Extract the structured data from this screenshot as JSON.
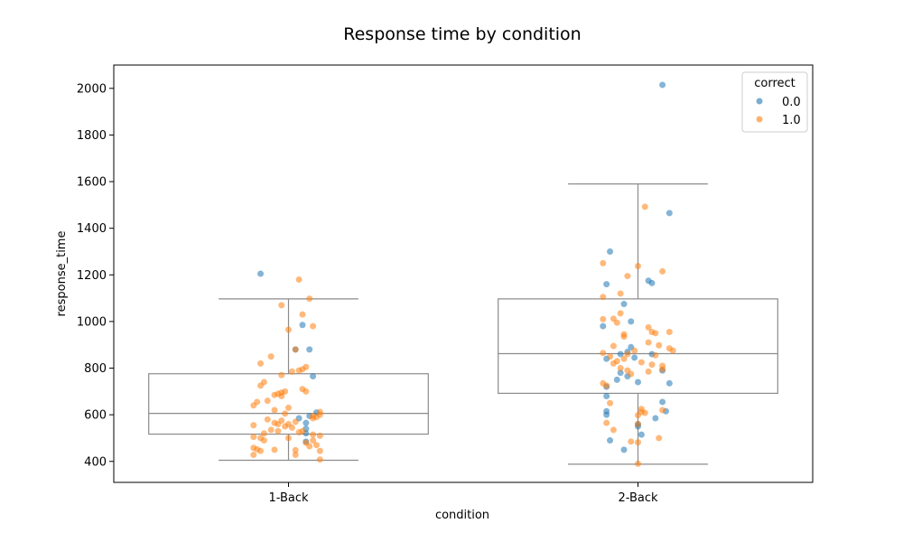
{
  "chart_data": {
    "type": "box+strip",
    "title": "Response time by condition",
    "xlabel": "condition",
    "ylabel": "response_time",
    "ylim": [
      310,
      2100
    ],
    "yticks": [
      400,
      600,
      800,
      1000,
      1200,
      1400,
      1600,
      1800,
      2000
    ],
    "categories": [
      "1-Back",
      "2-Back"
    ],
    "box_stats": [
      {
        "category": "1-Back",
        "whisker_low": 405,
        "q1": 517,
        "median": 606,
        "q3": 776,
        "whisker_high": 1097
      },
      {
        "category": "2-Back",
        "whisker_low": 388,
        "q1": 692,
        "median": 862,
        "q3": 1097,
        "whisker_high": 1590
      }
    ],
    "legend": {
      "title": "correct",
      "entries": [
        "0.0",
        "1.0"
      ],
      "placement": "top-right"
    },
    "colors": {
      "correct_0": "#1f77b4",
      "correct_1": "#ff7f0e",
      "box_line": "#8c8c8c",
      "frame": "#000000"
    },
    "series": [
      {
        "name": "0.0",
        "points": [
          {
            "category": "1-Back",
            "x_offset": -0.08,
            "y": 1205
          },
          {
            "category": "1-Back",
            "x_offset": 0.04,
            "y": 985
          },
          {
            "category": "1-Back",
            "x_offset": 0.06,
            "y": 880
          },
          {
            "category": "1-Back",
            "x_offset": 0.02,
            "y": 880
          },
          {
            "category": "1-Back",
            "x_offset": 0.07,
            "y": 765
          },
          {
            "category": "1-Back",
            "x_offset": 0.08,
            "y": 610
          },
          {
            "category": "1-Back",
            "x_offset": 0.06,
            "y": 595
          },
          {
            "category": "1-Back",
            "x_offset": 0.03,
            "y": 585
          },
          {
            "category": "1-Back",
            "x_offset": 0.05,
            "y": 565
          },
          {
            "category": "1-Back",
            "x_offset": 0.05,
            "y": 540
          },
          {
            "category": "1-Back",
            "x_offset": 0.05,
            "y": 520
          },
          {
            "category": "1-Back",
            "x_offset": 0.05,
            "y": 485
          },
          {
            "category": "2-Back",
            "x_offset": 0.07,
            "y": 2015
          },
          {
            "category": "2-Back",
            "x_offset": 0.09,
            "y": 1465
          },
          {
            "category": "2-Back",
            "x_offset": -0.08,
            "y": 1300
          },
          {
            "category": "2-Back",
            "x_offset": 0.03,
            "y": 1175
          },
          {
            "category": "2-Back",
            "x_offset": 0.04,
            "y": 1165
          },
          {
            "category": "2-Back",
            "x_offset": -0.09,
            "y": 1160
          },
          {
            "category": "2-Back",
            "x_offset": -0.04,
            "y": 1075
          },
          {
            "category": "2-Back",
            "x_offset": -0.02,
            "y": 1000
          },
          {
            "category": "2-Back",
            "x_offset": -0.1,
            "y": 980
          },
          {
            "category": "2-Back",
            "x_offset": -0.02,
            "y": 890
          },
          {
            "category": "2-Back",
            "x_offset": -0.03,
            "y": 870
          },
          {
            "category": "2-Back",
            "x_offset": -0.05,
            "y": 860
          },
          {
            "category": "2-Back",
            "x_offset": 0.04,
            "y": 860
          },
          {
            "category": "2-Back",
            "x_offset": -0.09,
            "y": 840
          },
          {
            "category": "2-Back",
            "x_offset": -0.01,
            "y": 845
          },
          {
            "category": "2-Back",
            "x_offset": 0.07,
            "y": 790
          },
          {
            "category": "2-Back",
            "x_offset": -0.05,
            "y": 780
          },
          {
            "category": "2-Back",
            "x_offset": -0.03,
            "y": 765
          },
          {
            "category": "2-Back",
            "x_offset": -0.06,
            "y": 750
          },
          {
            "category": "2-Back",
            "x_offset": 0.0,
            "y": 740
          },
          {
            "category": "2-Back",
            "x_offset": 0.09,
            "y": 735
          },
          {
            "category": "2-Back",
            "x_offset": -0.09,
            "y": 720
          },
          {
            "category": "2-Back",
            "x_offset": -0.09,
            "y": 680
          },
          {
            "category": "2-Back",
            "x_offset": 0.07,
            "y": 655
          },
          {
            "category": "2-Back",
            "x_offset": 0.08,
            "y": 615
          },
          {
            "category": "2-Back",
            "x_offset": -0.09,
            "y": 615
          },
          {
            "category": "2-Back",
            "x_offset": -0.09,
            "y": 600
          },
          {
            "category": "2-Back",
            "x_offset": 0.05,
            "y": 585
          },
          {
            "category": "2-Back",
            "x_offset": 0.0,
            "y": 560
          },
          {
            "category": "2-Back",
            "x_offset": 0.0,
            "y": 550
          },
          {
            "category": "2-Back",
            "x_offset": 0.01,
            "y": 515
          },
          {
            "category": "2-Back",
            "x_offset": -0.08,
            "y": 490
          },
          {
            "category": "2-Back",
            "x_offset": -0.04,
            "y": 450
          }
        ]
      },
      {
        "name": "1.0",
        "points": [
          {
            "category": "1-Back",
            "x_offset": 0.03,
            "y": 1180
          },
          {
            "category": "1-Back",
            "x_offset": 0.06,
            "y": 1098
          },
          {
            "category": "1-Back",
            "x_offset": -0.02,
            "y": 1070
          },
          {
            "category": "1-Back",
            "x_offset": 0.04,
            "y": 1030
          },
          {
            "category": "1-Back",
            "x_offset": 0.07,
            "y": 980
          },
          {
            "category": "1-Back",
            "x_offset": 0.0,
            "y": 965
          },
          {
            "category": "1-Back",
            "x_offset": 0.02,
            "y": 880
          },
          {
            "category": "1-Back",
            "x_offset": -0.05,
            "y": 850
          },
          {
            "category": "1-Back",
            "x_offset": -0.08,
            "y": 820
          },
          {
            "category": "1-Back",
            "x_offset": 0.05,
            "y": 805
          },
          {
            "category": "1-Back",
            "x_offset": 0.04,
            "y": 795
          },
          {
            "category": "1-Back",
            "x_offset": 0.03,
            "y": 790
          },
          {
            "category": "1-Back",
            "x_offset": 0.01,
            "y": 785
          },
          {
            "category": "1-Back",
            "x_offset": -0.02,
            "y": 770
          },
          {
            "category": "1-Back",
            "x_offset": -0.07,
            "y": 740
          },
          {
            "category": "1-Back",
            "x_offset": -0.08,
            "y": 725
          },
          {
            "category": "1-Back",
            "x_offset": 0.04,
            "y": 710
          },
          {
            "category": "1-Back",
            "x_offset": 0.05,
            "y": 700
          },
          {
            "category": "1-Back",
            "x_offset": -0.01,
            "y": 700
          },
          {
            "category": "1-Back",
            "x_offset": -0.02,
            "y": 695
          },
          {
            "category": "1-Back",
            "x_offset": -0.03,
            "y": 690
          },
          {
            "category": "1-Back",
            "x_offset": -0.04,
            "y": 685
          },
          {
            "category": "1-Back",
            "x_offset": -0.02,
            "y": 680
          },
          {
            "category": "1-Back",
            "x_offset": -0.06,
            "y": 660
          },
          {
            "category": "1-Back",
            "x_offset": -0.09,
            "y": 655
          },
          {
            "category": "1-Back",
            "x_offset": -0.1,
            "y": 640
          },
          {
            "category": "1-Back",
            "x_offset": 0.0,
            "y": 630
          },
          {
            "category": "1-Back",
            "x_offset": -0.04,
            "y": 620
          },
          {
            "category": "1-Back",
            "x_offset": 0.09,
            "y": 612
          },
          {
            "category": "1-Back",
            "x_offset": -0.01,
            "y": 605
          },
          {
            "category": "1-Back",
            "x_offset": 0.09,
            "y": 600
          },
          {
            "category": "1-Back",
            "x_offset": 0.07,
            "y": 595
          },
          {
            "category": "1-Back",
            "x_offset": 0.08,
            "y": 590
          },
          {
            "category": "1-Back",
            "x_offset": 0.07,
            "y": 585
          },
          {
            "category": "1-Back",
            "x_offset": -0.06,
            "y": 580
          },
          {
            "category": "1-Back",
            "x_offset": -0.02,
            "y": 575
          },
          {
            "category": "1-Back",
            "x_offset": 0.02,
            "y": 570
          },
          {
            "category": "1-Back",
            "x_offset": -0.04,
            "y": 565
          },
          {
            "category": "1-Back",
            "x_offset": -0.03,
            "y": 560
          },
          {
            "category": "1-Back",
            "x_offset": 0.0,
            "y": 560
          },
          {
            "category": "1-Back",
            "x_offset": -0.1,
            "y": 555
          },
          {
            "category": "1-Back",
            "x_offset": -0.01,
            "y": 550
          },
          {
            "category": "1-Back",
            "x_offset": 0.01,
            "y": 545
          },
          {
            "category": "1-Back",
            "x_offset": -0.05,
            "y": 535
          },
          {
            "category": "1-Back",
            "x_offset": 0.04,
            "y": 530
          },
          {
            "category": "1-Back",
            "x_offset": -0.03,
            "y": 530
          },
          {
            "category": "1-Back",
            "x_offset": 0.03,
            "y": 525
          },
          {
            "category": "1-Back",
            "x_offset": -0.07,
            "y": 520
          },
          {
            "category": "1-Back",
            "x_offset": 0.07,
            "y": 515
          },
          {
            "category": "1-Back",
            "x_offset": 0.09,
            "y": 510
          },
          {
            "category": "1-Back",
            "x_offset": -0.1,
            "y": 505
          },
          {
            "category": "1-Back",
            "x_offset": -0.08,
            "y": 500
          },
          {
            "category": "1-Back",
            "x_offset": 0.0,
            "y": 500
          },
          {
            "category": "1-Back",
            "x_offset": -0.07,
            "y": 490
          },
          {
            "category": "1-Back",
            "x_offset": 0.07,
            "y": 490
          },
          {
            "category": "1-Back",
            "x_offset": 0.05,
            "y": 480
          },
          {
            "category": "1-Back",
            "x_offset": 0.08,
            "y": 470
          },
          {
            "category": "1-Back",
            "x_offset": 0.06,
            "y": 465
          },
          {
            "category": "1-Back",
            "x_offset": -0.1,
            "y": 458
          },
          {
            "category": "1-Back",
            "x_offset": -0.09,
            "y": 452
          },
          {
            "category": "1-Back",
            "x_offset": -0.04,
            "y": 450
          },
          {
            "category": "1-Back",
            "x_offset": 0.02,
            "y": 448
          },
          {
            "category": "1-Back",
            "x_offset": -0.08,
            "y": 445
          },
          {
            "category": "1-Back",
            "x_offset": 0.09,
            "y": 445
          },
          {
            "category": "1-Back",
            "x_offset": -0.1,
            "y": 428
          },
          {
            "category": "1-Back",
            "x_offset": 0.02,
            "y": 428
          },
          {
            "category": "1-Back",
            "x_offset": 0.09,
            "y": 408
          },
          {
            "category": "2-Back",
            "x_offset": 0.02,
            "y": 1492
          },
          {
            "category": "2-Back",
            "x_offset": -0.1,
            "y": 1250
          },
          {
            "category": "2-Back",
            "x_offset": 0.0,
            "y": 1238
          },
          {
            "category": "2-Back",
            "x_offset": 0.07,
            "y": 1215
          },
          {
            "category": "2-Back",
            "x_offset": -0.03,
            "y": 1195
          },
          {
            "category": "2-Back",
            "x_offset": -0.05,
            "y": 1120
          },
          {
            "category": "2-Back",
            "x_offset": -0.1,
            "y": 1105
          },
          {
            "category": "2-Back",
            "x_offset": -0.05,
            "y": 1035
          },
          {
            "category": "2-Back",
            "x_offset": -0.07,
            "y": 1012
          },
          {
            "category": "2-Back",
            "x_offset": -0.1,
            "y": 1010
          },
          {
            "category": "2-Back",
            "x_offset": -0.06,
            "y": 995
          },
          {
            "category": "2-Back",
            "x_offset": 0.03,
            "y": 975
          },
          {
            "category": "2-Back",
            "x_offset": 0.04,
            "y": 955
          },
          {
            "category": "2-Back",
            "x_offset": 0.09,
            "y": 955
          },
          {
            "category": "2-Back",
            "x_offset": 0.05,
            "y": 950
          },
          {
            "category": "2-Back",
            "x_offset": -0.04,
            "y": 945
          },
          {
            "category": "2-Back",
            "x_offset": -0.04,
            "y": 935
          },
          {
            "category": "2-Back",
            "x_offset": 0.03,
            "y": 910
          },
          {
            "category": "2-Back",
            "x_offset": 0.06,
            "y": 898
          },
          {
            "category": "2-Back",
            "x_offset": -0.07,
            "y": 895
          },
          {
            "category": "2-Back",
            "x_offset": 0.09,
            "y": 885
          },
          {
            "category": "2-Back",
            "x_offset": -0.01,
            "y": 875
          },
          {
            "category": "2-Back",
            "x_offset": 0.1,
            "y": 875
          },
          {
            "category": "2-Back",
            "x_offset": -0.1,
            "y": 865
          },
          {
            "category": "2-Back",
            "x_offset": -0.03,
            "y": 860
          },
          {
            "category": "2-Back",
            "x_offset": 0.05,
            "y": 855
          },
          {
            "category": "2-Back",
            "x_offset": -0.08,
            "y": 850
          },
          {
            "category": "2-Back",
            "x_offset": -0.04,
            "y": 840
          },
          {
            "category": "2-Back",
            "x_offset": -0.06,
            "y": 830
          },
          {
            "category": "2-Back",
            "x_offset": 0.01,
            "y": 825
          },
          {
            "category": "2-Back",
            "x_offset": -0.07,
            "y": 820
          },
          {
            "category": "2-Back",
            "x_offset": 0.04,
            "y": 815
          },
          {
            "category": "2-Back",
            "x_offset": 0.07,
            "y": 810
          },
          {
            "category": "2-Back",
            "x_offset": -0.05,
            "y": 800
          },
          {
            "category": "2-Back",
            "x_offset": 0.07,
            "y": 795
          },
          {
            "category": "2-Back",
            "x_offset": -0.03,
            "y": 790
          },
          {
            "category": "2-Back",
            "x_offset": 0.03,
            "y": 785
          },
          {
            "category": "2-Back",
            "x_offset": -0.02,
            "y": 775
          },
          {
            "category": "2-Back",
            "x_offset": -0.1,
            "y": 735
          },
          {
            "category": "2-Back",
            "x_offset": -0.09,
            "y": 725
          },
          {
            "category": "2-Back",
            "x_offset": -0.08,
            "y": 650
          },
          {
            "category": "2-Back",
            "x_offset": 0.01,
            "y": 625
          },
          {
            "category": "2-Back",
            "x_offset": 0.07,
            "y": 620
          },
          {
            "category": "2-Back",
            "x_offset": 0.01,
            "y": 612
          },
          {
            "category": "2-Back",
            "x_offset": 0.02,
            "y": 608
          },
          {
            "category": "2-Back",
            "x_offset": 0.0,
            "y": 598
          },
          {
            "category": "2-Back",
            "x_offset": 0.0,
            "y": 560
          },
          {
            "category": "2-Back",
            "x_offset": -0.09,
            "y": 565
          },
          {
            "category": "2-Back",
            "x_offset": -0.07,
            "y": 535
          },
          {
            "category": "2-Back",
            "x_offset": 0.06,
            "y": 500
          },
          {
            "category": "2-Back",
            "x_offset": -0.02,
            "y": 485
          },
          {
            "category": "2-Back",
            "x_offset": 0.0,
            "y": 482
          },
          {
            "category": "2-Back",
            "x_offset": 0.0,
            "y": 390
          }
        ]
      }
    ]
  }
}
